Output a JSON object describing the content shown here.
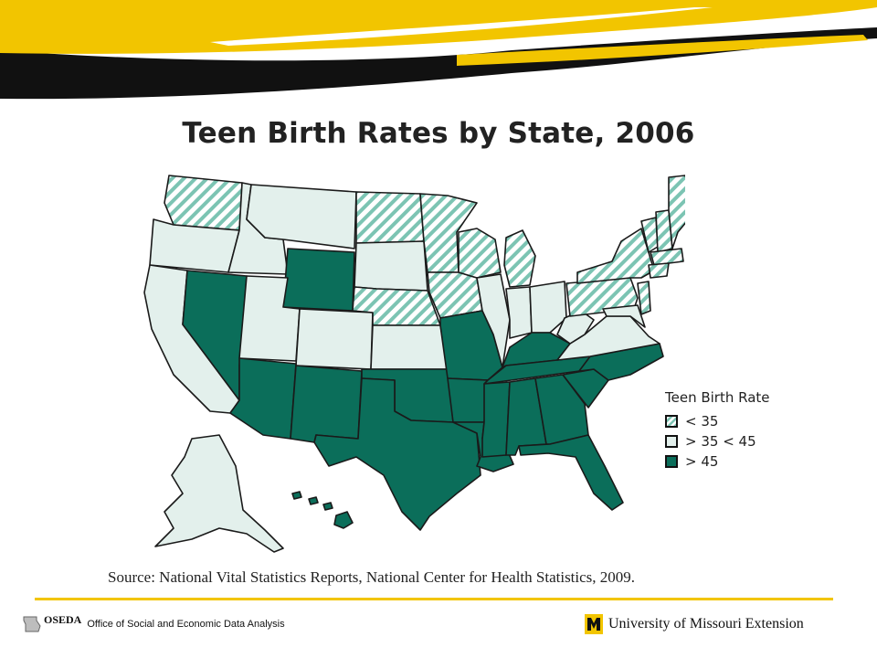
{
  "title": "Teen Birth Rates by State, 2006",
  "legend": {
    "title": "Teen Birth Rate",
    "items": [
      {
        "label": "< 35",
        "pattern": "hatched",
        "color": "#7cc4b3"
      },
      {
        "label": "> 35 < 45",
        "pattern": "solid",
        "color": "#e3f0ec"
      },
      {
        "label": "> 45",
        "pattern": "solid",
        "color": "#0b6e5a"
      }
    ]
  },
  "source": "Source: National Vital Statistics Reports, National Center for Health Statistics, 2009.",
  "footer": {
    "left_logo": "OSEDA",
    "left_text": "Office of Social and Economic Data Analysis",
    "right_text": "University of Missouri Extension"
  },
  "colors": {
    "banner_yellow": "#f2c500",
    "banner_black": "#111111",
    "dark_green": "#0b6e5a",
    "light_teal": "#e3f0ec",
    "hatch": "#7cc4b3"
  }
}
